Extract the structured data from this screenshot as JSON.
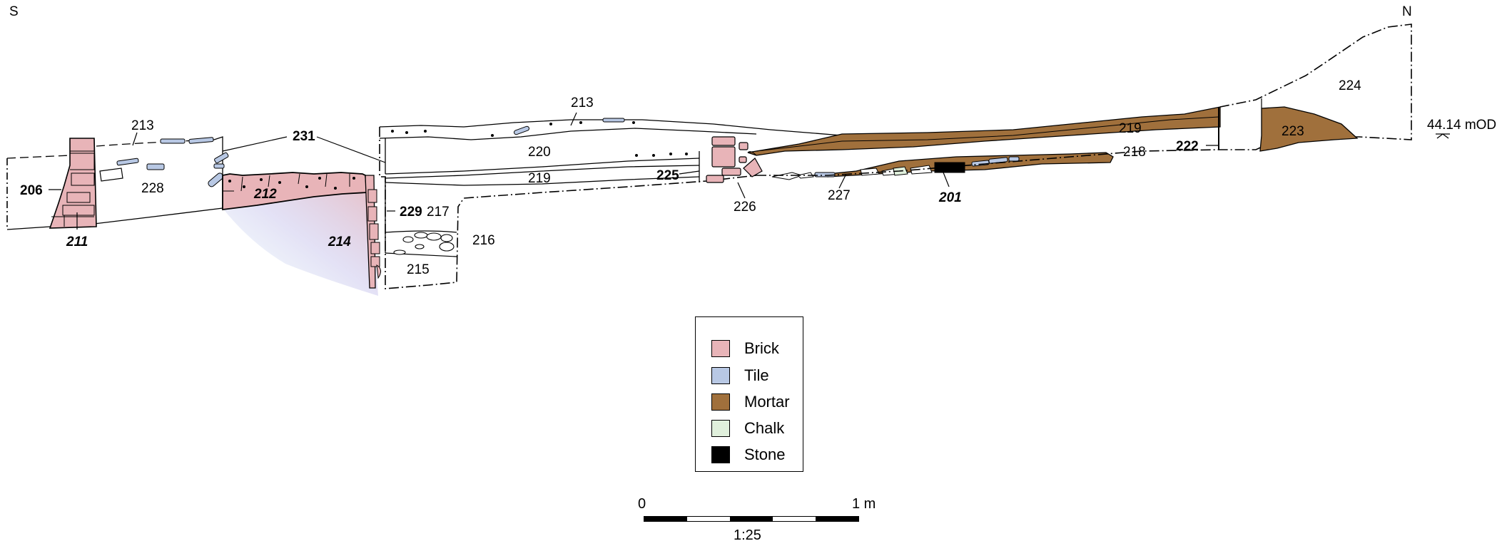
{
  "orientation": {
    "left": "S",
    "right": "N"
  },
  "datum": "44.14 mOD",
  "contexts": {
    "c206": "206",
    "c211": "211",
    "c212": "212",
    "c213a": "213",
    "c213b": "213",
    "c214": "214",
    "c215": "215",
    "c216": "216",
    "c217": "217",
    "c218": "218",
    "c219a": "219",
    "c219b": "219",
    "c220": "220",
    "c222": "222",
    "c223": "223",
    "c224": "224",
    "c225": "225",
    "c226": "226",
    "c227": "227",
    "c228": "228",
    "c229": "229",
    "c231": "231",
    "c201": "201"
  },
  "legend": {
    "items": [
      {
        "label": "Brick",
        "color": "#e8b4b8"
      },
      {
        "label": "Tile",
        "color": "#b8c8e4"
      },
      {
        "label": "Mortar",
        "color": "#a0703c"
      },
      {
        "label": "Chalk",
        "color": "#e0f0dc"
      },
      {
        "label": "Stone",
        "color": "#000000"
      }
    ]
  },
  "scale": {
    "start": "0",
    "end": "1 m",
    "ratio": "1:25"
  }
}
